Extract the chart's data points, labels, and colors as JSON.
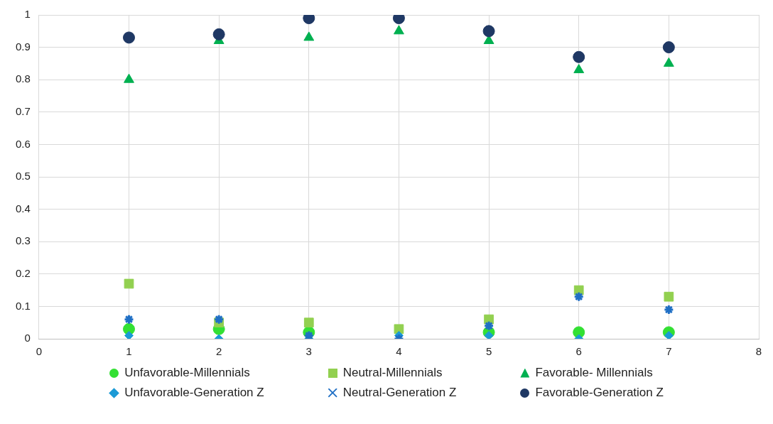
{
  "chart_data": {
    "type": "scatter",
    "x": [
      1,
      2,
      3,
      4,
      5,
      6,
      7
    ],
    "series": [
      {
        "name": "Unfavorable-Millennials",
        "color": "#33e033",
        "marker": "circle",
        "values": [
          0.03,
          0.03,
          0.02,
          null,
          0.02,
          0.02,
          0.02
        ]
      },
      {
        "name": "Neutral-Millennials",
        "color": "#92d050",
        "marker": "square",
        "values": [
          0.17,
          0.05,
          0.05,
          0.03,
          0.06,
          0.15,
          0.13
        ]
      },
      {
        "name": "Favorable- Millennials",
        "color": "#00b050",
        "marker": "triangle",
        "values": [
          0.8,
          0.92,
          0.93,
          0.95,
          0.92,
          0.83,
          0.85
        ]
      },
      {
        "name": "Unfavorable-Generation Z",
        "color": "#1b9ad6",
        "marker": "diamond",
        "values": [
          0.01,
          0,
          0,
          0.01,
          0.01,
          0,
          0.01
        ]
      },
      {
        "name": "Neutral-Generation Z",
        "color": "#1f6fc5",
        "marker": "cross",
        "values": [
          0.06,
          0.06,
          0.01,
          0,
          0.04,
          0.13,
          0.09
        ]
      },
      {
        "name": "Favorable-Generation Z",
        "color": "#1f3864",
        "marker": "circle",
        "values": [
          0.93,
          0.94,
          0.99,
          0.99,
          0.95,
          0.87,
          0.9
        ]
      }
    ],
    "xlim": [
      0,
      8
    ],
    "xticks": [
      0,
      1,
      2,
      3,
      4,
      5,
      6,
      7,
      8
    ],
    "ylim": [
      0,
      1
    ],
    "yticks": [
      0,
      0.1,
      0.2,
      0.3,
      0.4,
      0.5,
      0.6,
      0.7,
      0.8,
      0.9,
      1
    ],
    "grid": true,
    "legend": "bottom"
  }
}
